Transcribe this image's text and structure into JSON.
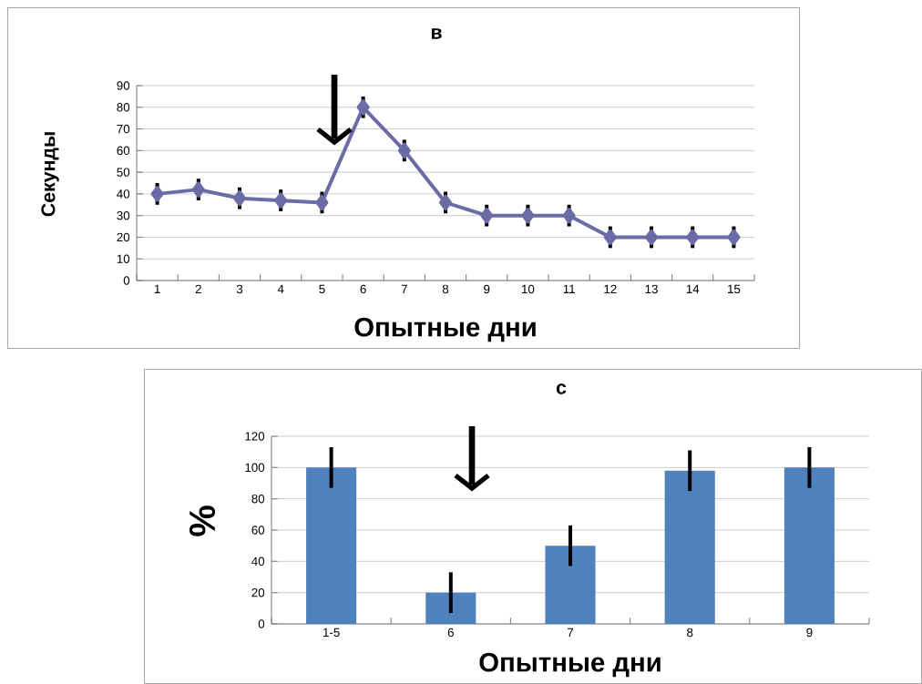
{
  "chart_data": [
    {
      "type": "line",
      "title": "в",
      "xlabel": "Опытные дни",
      "ylabel": "Секунды",
      "categories": [
        "1",
        "2",
        "3",
        "4",
        "5",
        "6",
        "7",
        "8",
        "9",
        "10",
        "11",
        "12",
        "13",
        "14",
        "15"
      ],
      "values": [
        40,
        42,
        38,
        37,
        36,
        80,
        60,
        36,
        30,
        30,
        30,
        20,
        20,
        20,
        20
      ],
      "errors": [
        5,
        5,
        5,
        5,
        5,
        5,
        5,
        5,
        5,
        5,
        5,
        5,
        5,
        5,
        5
      ],
      "color": "#6b6ba6",
      "marker": "diamond",
      "ylim": [
        0,
        90
      ],
      "yticks": [
        0,
        10,
        20,
        30,
        40,
        50,
        60,
        70,
        80,
        90
      ],
      "grid": "y"
    },
    {
      "type": "bar",
      "title": "с",
      "xlabel": "Опытные дни",
      "ylabel": "%",
      "categories": [
        "1-5",
        "6",
        "7",
        "8",
        "9"
      ],
      "values": [
        100,
        20,
        50,
        98,
        100
      ],
      "errors": [
        13,
        13,
        13,
        13,
        13
      ],
      "color": "#4f81bd",
      "ylim": [
        0,
        120
      ],
      "yticks": [
        0,
        20,
        40,
        60,
        80,
        100,
        120
      ],
      "grid": "y"
    }
  ]
}
